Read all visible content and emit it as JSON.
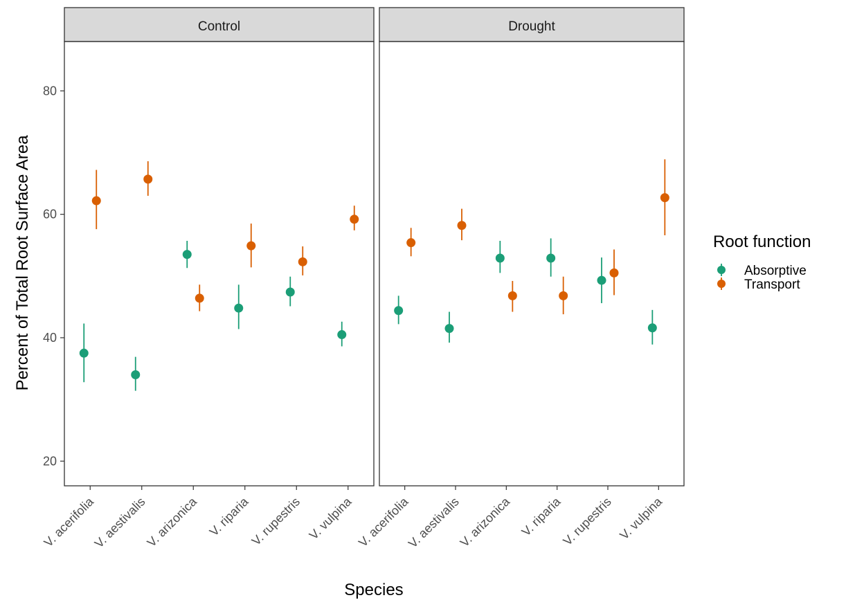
{
  "chart_data": {
    "type": "scatter",
    "facets": [
      "Control",
      "Drought"
    ],
    "categories": [
      "V. acerifolia",
      "V. aestivalis",
      "V. arizonica",
      "V. riparia",
      "V. rupestris",
      "V. vulpina"
    ],
    "xlabel": "Species",
    "ylabel": "Percent of Total Root Surface Area",
    "ylim": [
      16,
      88
    ],
    "yticks": [
      20,
      40,
      60,
      80
    ],
    "grid": false,
    "legend": {
      "title": "Root function",
      "position": "right",
      "entries": [
        "Absorptive",
        "Transport"
      ]
    },
    "series": [
      {
        "name": "Absorptive",
        "color": "#1b9e77",
        "panels": {
          "Control": [
            {
              "y": 37.5,
              "lo": 32.8,
              "hi": 42.3
            },
            {
              "y": 34.0,
              "lo": 31.4,
              "hi": 36.9
            },
            {
              "y": 53.5,
              "lo": 51.3,
              "hi": 55.7
            },
            {
              "y": 44.8,
              "lo": 41.4,
              "hi": 48.6
            },
            {
              "y": 47.4,
              "lo": 45.1,
              "hi": 49.9
            },
            {
              "y": 40.5,
              "lo": 38.6,
              "hi": 42.6
            }
          ],
          "Drought": [
            {
              "y": 44.4,
              "lo": 42.2,
              "hi": 46.8
            },
            {
              "y": 41.5,
              "lo": 39.2,
              "hi": 44.2
            },
            {
              "y": 52.9,
              "lo": 50.5,
              "hi": 55.7
            },
            {
              "y": 52.9,
              "lo": 49.9,
              "hi": 56.1
            },
            {
              "y": 49.3,
              "lo": 45.6,
              "hi": 53.0
            },
            {
              "y": 41.6,
              "lo": 38.9,
              "hi": 44.5
            }
          ]
        }
      },
      {
        "name": "Transport",
        "color": "#d95f02",
        "panels": {
          "Control": [
            {
              "y": 62.2,
              "lo": 57.6,
              "hi": 67.2
            },
            {
              "y": 65.7,
              "lo": 63.0,
              "hi": 68.6
            },
            {
              "y": 46.4,
              "lo": 44.3,
              "hi": 48.6
            },
            {
              "y": 54.9,
              "lo": 51.4,
              "hi": 58.5
            },
            {
              "y": 52.3,
              "lo": 50.1,
              "hi": 54.8
            },
            {
              "y": 59.2,
              "lo": 57.4,
              "hi": 61.4
            }
          ],
          "Drought": [
            {
              "y": 55.4,
              "lo": 53.2,
              "hi": 57.8
            },
            {
              "y": 58.2,
              "lo": 55.8,
              "hi": 60.9
            },
            {
              "y": 46.8,
              "lo": 44.2,
              "hi": 49.2
            },
            {
              "y": 46.8,
              "lo": 43.8,
              "hi": 49.9
            },
            {
              "y": 50.5,
              "lo": 46.9,
              "hi": 54.3
            },
            {
              "y": 62.7,
              "lo": 56.6,
              "hi": 68.9
            }
          ]
        }
      }
    ]
  }
}
